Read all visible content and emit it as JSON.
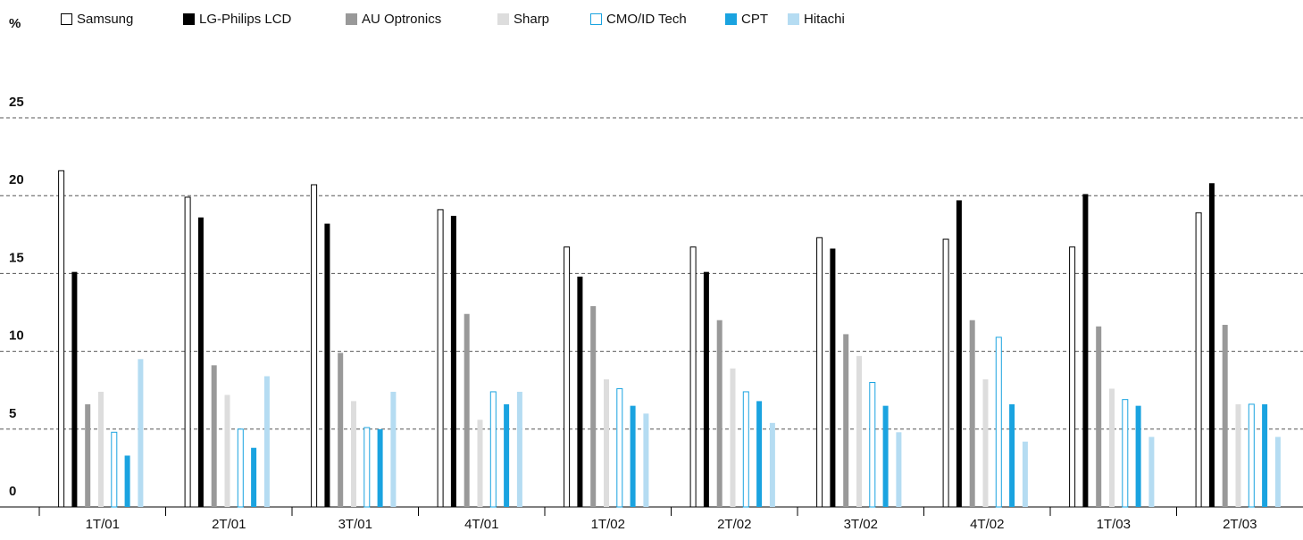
{
  "chart_data": {
    "type": "bar",
    "ylabel": "%",
    "categories": [
      "1T/01",
      "2T/01",
      "3T/01",
      "4T/01",
      "1T/02",
      "2T/02",
      "3T/02",
      "4T/02",
      "1T/03",
      "2T/03"
    ],
    "series": [
      {
        "name": "Samsung",
        "color": "#ffffff",
        "edge": "#000000",
        "values": [
          21.6,
          19.9,
          20.7,
          19.1,
          16.7,
          16.7,
          17.3,
          17.2,
          16.7,
          18.9
        ]
      },
      {
        "name": "LG-Philips LCD",
        "color": "#000000",
        "values": [
          15.1,
          18.6,
          18.2,
          18.7,
          14.8,
          15.1,
          16.6,
          19.7,
          20.1,
          20.8
        ]
      },
      {
        "name": "AU Optronics",
        "color": "#999999",
        "values": [
          6.6,
          9.1,
          9.9,
          12.4,
          12.9,
          12.0,
          11.1,
          12.0,
          11.6,
          11.7
        ]
      },
      {
        "name": "Sharp",
        "color": "#dddddd",
        "values": [
          7.4,
          7.2,
          6.8,
          5.6,
          8.2,
          8.9,
          9.7,
          8.2,
          7.6,
          6.6
        ]
      },
      {
        "name": "CMO/ID Tech",
        "color": "#ffffff",
        "edge": "#1aa3e0",
        "values": [
          4.8,
          5.0,
          5.1,
          7.4,
          7.6,
          7.4,
          8.0,
          10.9,
          6.9,
          6.6
        ]
      },
      {
        "name": "CPT",
        "color": "#1aa3e0",
        "values": [
          3.3,
          3.8,
          5.0,
          6.6,
          6.5,
          6.8,
          6.5,
          6.6,
          6.5,
          6.6
        ]
      },
      {
        "name": "Hitachi",
        "color": "#b5dcf2",
        "values": [
          9.5,
          8.4,
          7.4,
          7.4,
          6.0,
          5.4,
          4.8,
          4.2,
          4.5,
          4.5
        ]
      }
    ],
    "ylim": [
      0,
      25
    ],
    "yticks": [
      0,
      5,
      10,
      15,
      20,
      25
    ],
    "grid": true
  }
}
